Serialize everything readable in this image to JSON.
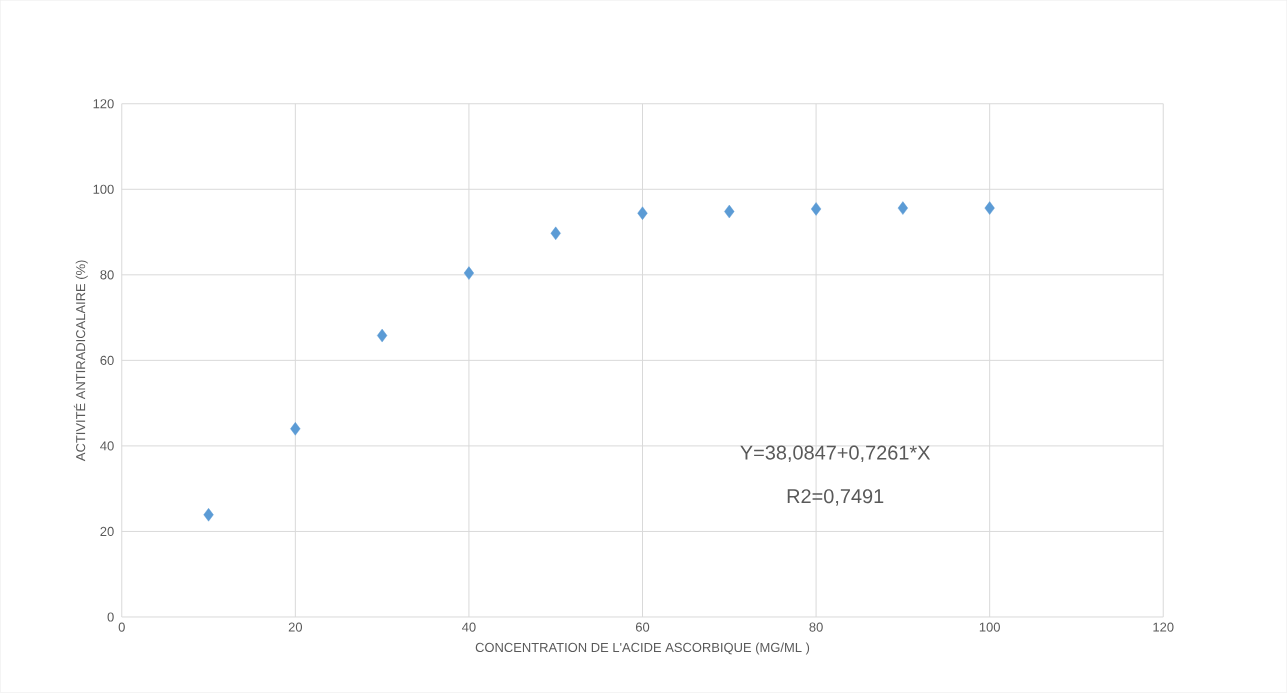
{
  "chart_data": {
    "type": "scatter",
    "xlabel": "CONCENTRATION DE L'ACIDE ASCORBIQUE (MG/ML )",
    "ylabel": "ACTIVITÉ ANTIRADICALAIRE (%)",
    "x": [
      10,
      20,
      30,
      40,
      50,
      60,
      70,
      80,
      90,
      100
    ],
    "series": [
      {
        "color": "#5b9bd5",
        "values": [
          23.9,
          44.0,
          65.8,
          80.4,
          89.7,
          94.4,
          94.8,
          95.4,
          95.6,
          95.6
        ]
      }
    ],
    "xlim": [
      0,
      120
    ],
    "ylim": [
      0,
      120
    ],
    "xticks": [
      0,
      20,
      40,
      60,
      80,
      100,
      120
    ],
    "yticks": [
      0,
      20,
      40,
      60,
      80,
      100,
      120
    ],
    "grid": true,
    "marker": "diamond",
    "annotations": [
      "Y=38,0847+0,7261*X",
      "R2=0,7491"
    ]
  }
}
